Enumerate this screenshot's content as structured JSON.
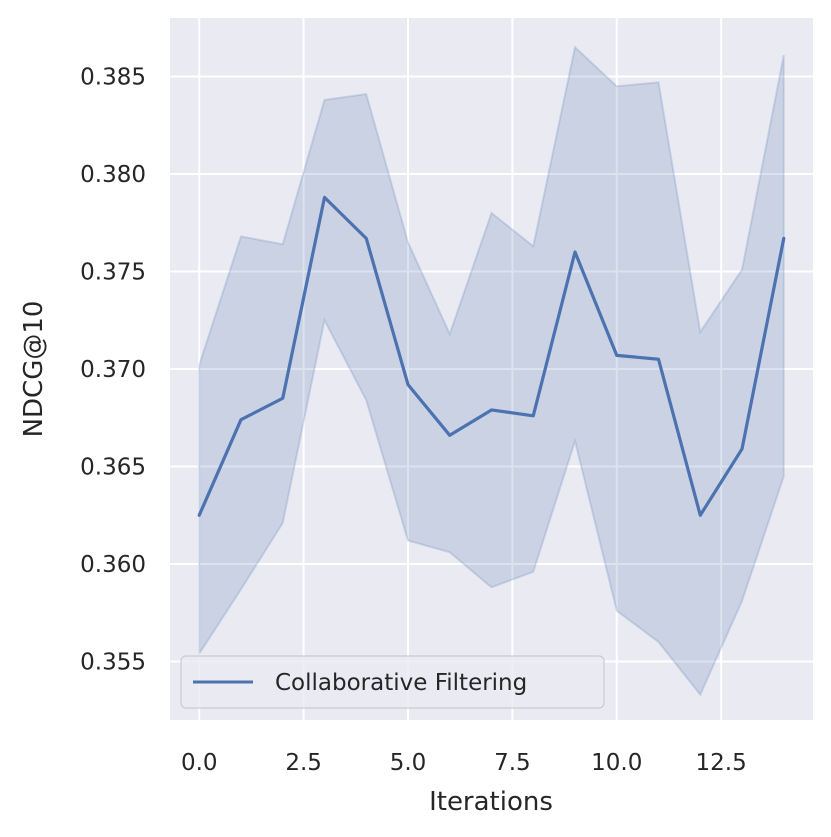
{
  "chart_data": {
    "type": "line",
    "title": "",
    "xlabel": "Iterations",
    "ylabel": "NDCG@10",
    "xlim": [
      -0.7,
      14.7
    ],
    "ylim": [
      0.352,
      0.388
    ],
    "xticks": [
      0.0,
      2.5,
      5.0,
      7.5,
      10.0,
      12.5
    ],
    "xtick_labels": [
      "0.0",
      "2.5",
      "5.0",
      "7.5",
      "10.0",
      "12.5"
    ],
    "yticks": [
      0.355,
      0.36,
      0.365,
      0.37,
      0.375,
      0.38,
      0.385
    ],
    "ytick_labels": [
      "0.355",
      "0.360",
      "0.365",
      "0.370",
      "0.375",
      "0.380",
      "0.385"
    ],
    "grid": true,
    "legend_position": "bottom-left",
    "series": [
      {
        "name": "Collaborative Filtering",
        "color": "#4c72b0",
        "x": [
          0,
          1,
          2,
          3,
          4,
          5,
          6,
          7,
          8,
          9,
          10,
          11,
          12,
          13,
          14
        ],
        "y": [
          0.3625,
          0.3674,
          0.3685,
          0.3788,
          0.3767,
          0.3692,
          0.3666,
          0.3679,
          0.3676,
          0.376,
          0.3707,
          0.3705,
          0.3625,
          0.3659,
          0.3767
        ],
        "upper": [
          0.3702,
          0.3768,
          0.3764,
          0.3838,
          0.3841,
          0.3765,
          0.3718,
          0.378,
          0.3763,
          0.3865,
          0.3845,
          0.3847,
          0.3719,
          0.3751,
          0.3861
        ],
        "lower": [
          0.3554,
          0.3587,
          0.3621,
          0.3725,
          0.3684,
          0.3612,
          0.3606,
          0.3588,
          0.3596,
          0.3663,
          0.3576,
          0.356,
          0.3533,
          0.3581,
          0.3645
        ]
      }
    ]
  }
}
